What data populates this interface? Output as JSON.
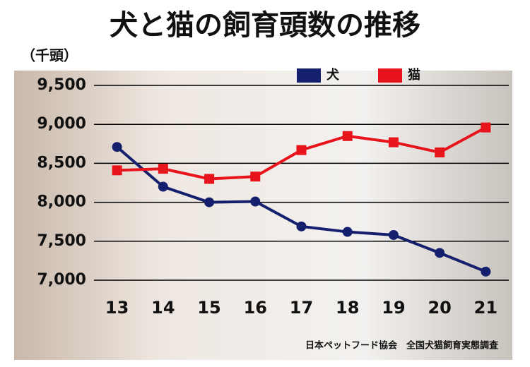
{
  "chart_data": {
    "type": "line",
    "title": "犬と猫の飼育頭数の推移",
    "y_unit": "（千頭）",
    "categories": [
      "13",
      "14",
      "15",
      "16",
      "17",
      "18",
      "19",
      "20",
      "21"
    ],
    "series": [
      {
        "name": "犬",
        "color": "#14206e",
        "values": [
          8710,
          8200,
          8000,
          8010,
          7690,
          7620,
          7580,
          7350,
          7110
        ]
      },
      {
        "name": "猫",
        "color": "#e8141c",
        "values": [
          8410,
          8430,
          8300,
          8330,
          8670,
          8850,
          8770,
          8640,
          8960
        ]
      }
    ],
    "ylim": [
      7000,
      9500
    ],
    "yticks": [
      {
        "value": 7000,
        "label": "7,000"
      },
      {
        "value": 7500,
        "label": "7,500"
      },
      {
        "value": 8000,
        "label": "8,000"
      },
      {
        "value": 8500,
        "label": "8,500"
      },
      {
        "value": 9000,
        "label": "9,000"
      },
      {
        "value": 9500,
        "label": "9,500"
      }
    ],
    "grid": true,
    "source": "日本ペットフード協会　全国犬猫飼育実態調査"
  }
}
